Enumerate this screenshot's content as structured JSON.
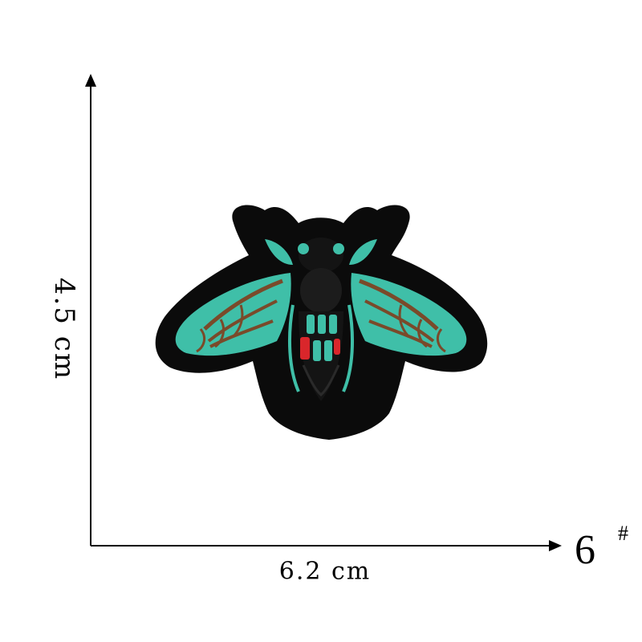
{
  "dimensions": {
    "height_label": "4.5 cm",
    "width_label": "6.2 cm"
  },
  "product": {
    "number": "6",
    "number_mark": "#",
    "image_icon": "bee-patch-icon"
  },
  "colors": {
    "background": "#ffffff",
    "axis": "#000000",
    "patch_border": "#0b0b0b",
    "wing_teal": "#3fbfa8",
    "vein_brown": "#7a4a2a",
    "stripe_red": "#d9262b",
    "body_dark": "#141414"
  }
}
